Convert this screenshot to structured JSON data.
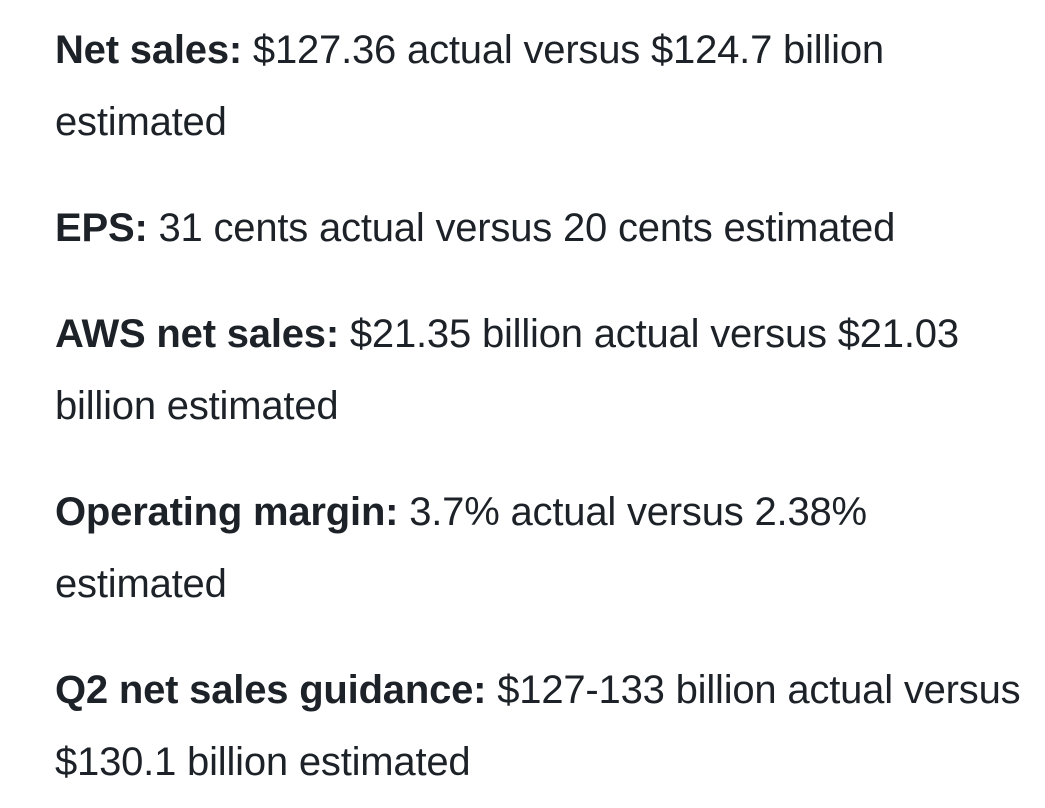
{
  "items": [
    {
      "label": "Net sales:",
      "value": " $127.36 actual versus $124.7 billion estimated"
    },
    {
      "label": "EPS:",
      "value": " 31 cents actual versus 20 cents estimated"
    },
    {
      "label": "AWS net sales:",
      "value": " $21.35 billion actual versus $21.03 billion estimated"
    },
    {
      "label": "Operating margin:",
      "value": " 3.7% actual versus 2.38% estimated"
    },
    {
      "label": "Q2 net sales guidance:",
      "value": " $127-133 billion actual versus $130.1 billion estimated"
    }
  ]
}
